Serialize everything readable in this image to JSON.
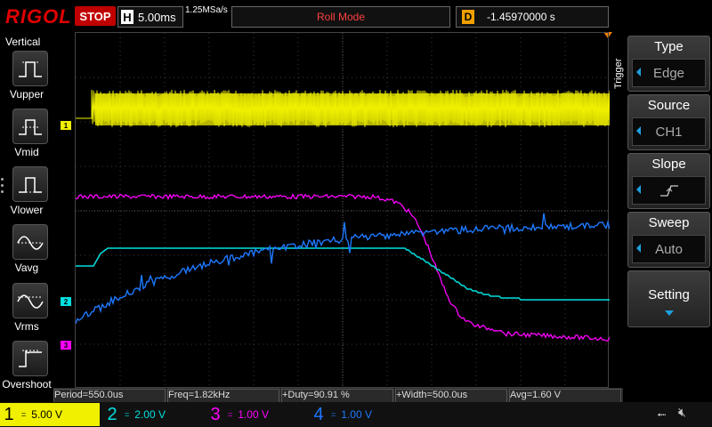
{
  "topbar": {
    "brand": "RIGOL",
    "run_state": "STOP",
    "timebase_key": "H",
    "timebase": "5.00ms",
    "sample_rate": "1.25MSa/s",
    "mode": "Roll Mode",
    "delay_key": "D",
    "delay": "-1.45970000 s"
  },
  "left_menu": {
    "title": "Vertical",
    "items": [
      {
        "label": "Vupper",
        "icon": "vupper-icon"
      },
      {
        "label": "Vmid",
        "icon": "vmid-icon"
      },
      {
        "label": "Vlower",
        "icon": "vlower-icon"
      },
      {
        "label": "Vavg",
        "icon": "vavg-icon"
      },
      {
        "label": "Vrms",
        "icon": "vrms-icon"
      },
      {
        "label": "Overshoot",
        "icon": "overshoot-icon"
      }
    ]
  },
  "right_menu": {
    "title": "Trigger",
    "items": [
      {
        "label": "Type",
        "value": "Edge"
      },
      {
        "label": "Source",
        "value": "CH1"
      },
      {
        "label": "Slope",
        "value": ""
      },
      {
        "label": "Sweep",
        "value": "Auto"
      },
      {
        "label": "Setting",
        "value": ""
      }
    ]
  },
  "channel_markers": [
    "1",
    "2",
    "3"
  ],
  "measurements": {
    "period": "Period=550.0us",
    "freq": "Freq=1.82kHz",
    "duty": "+Duty=90.91 %",
    "width": "+Width=500.0us",
    "avg": "Avg=1.60 V"
  },
  "channels": [
    {
      "num": "1",
      "scale": "5.00 V",
      "color": "#f0f000"
    },
    {
      "num": "2",
      "scale": "2.00 V",
      "color": "#00e0e0"
    },
    {
      "num": "3",
      "scale": "1.00 V",
      "color": "#ff00ff"
    },
    {
      "num": "4",
      "scale": "1.00 V",
      "color": "#1e78ff"
    }
  ],
  "colors": {
    "ch1": "#f0f000",
    "ch2": "#00e0e0",
    "ch3": "#ff00ff",
    "ch4": "#1e78ff",
    "stop": "#c00000",
    "trigger": "#f08000"
  }
}
